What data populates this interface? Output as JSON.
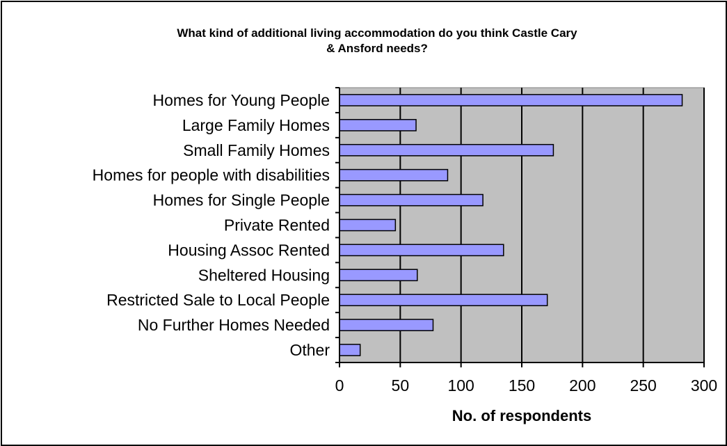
{
  "chart_data": {
    "type": "bar",
    "orientation": "horizontal",
    "title_lines": [
      "What kind of additional living accommodation do you think Castle Cary",
      "& Ansford needs?"
    ],
    "categories": [
      "Homes for Young People",
      "Large Family Homes",
      "Small Family Homes",
      "Homes for people with disabilities",
      "Homes for Single People",
      "Private Rented",
      "Housing Assoc Rented",
      "Sheltered Housing",
      "Restricted Sale to Local People",
      "No Further Homes Needed",
      "Other"
    ],
    "values": [
      282,
      63,
      176,
      89,
      118,
      46,
      135,
      64,
      171,
      77,
      17
    ],
    "xlabel": "No. of respondents",
    "ylabel": "",
    "xlim": [
      0,
      300
    ],
    "xticks": [
      "0",
      "50",
      "100",
      "150",
      "200",
      "250",
      "300"
    ],
    "grid": "vertical",
    "legend": "none",
    "colors": {
      "bar_fill": "#9999ff",
      "bar_stroke": "#000000",
      "plot_background": "#c0c0c0",
      "gridline": "#000000"
    }
  }
}
